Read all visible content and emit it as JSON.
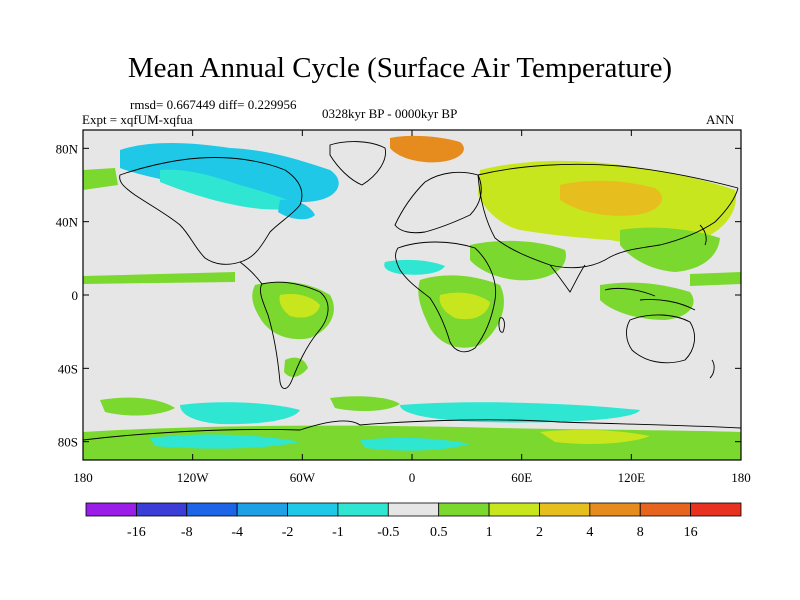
{
  "title": "Mean Annual Cycle (Surface Air Temperature)",
  "stats": "rmsd= 0.667449 diff= 0.229956",
  "period": "0328kyr BP - 0000kyr BP",
  "experiment": "Expt = xqfUM-xqfua",
  "season": "ANN",
  "lat_ticks": [
    {
      "value": 80,
      "label": "80N"
    },
    {
      "value": 40,
      "label": "40N"
    },
    {
      "value": 0,
      "label": "0"
    },
    {
      "value": -40,
      "label": "40S"
    },
    {
      "value": -80,
      "label": "80S"
    }
  ],
  "lon_ticks": [
    {
      "value": -180,
      "label": "180"
    },
    {
      "value": -120,
      "label": "120W"
    },
    {
      "value": -60,
      "label": "60W"
    },
    {
      "value": 0,
      "label": "0"
    },
    {
      "value": 60,
      "label": "60E"
    },
    {
      "value": 120,
      "label": "120E"
    },
    {
      "value": 180,
      "label": "180"
    }
  ],
  "colorbar": {
    "colors": [
      "#9b1ee8",
      "#3c3cd6",
      "#1e64e6",
      "#1ea0e6",
      "#1ec8e6",
      "#2ee6d2",
      "#e6e6e6",
      "#7ad82e",
      "#c8e61e",
      "#e6be1e",
      "#e68c1e",
      "#e6641e",
      "#e6321e"
    ],
    "labels": [
      "-16",
      "-8",
      "-4",
      "-2",
      "-1",
      "-0.5",
      "0.5",
      "1",
      "2",
      "4",
      "8",
      "16"
    ]
  },
  "field_colors": {
    "neutral": "#e6e6e6",
    "cool_light": "#2ee6d2",
    "cool": "#1ec8e6",
    "warm_light": "#7ad82e",
    "warm": "#c8e61e",
    "warmer": "#e6be1e",
    "hot": "#e68c1e"
  }
}
